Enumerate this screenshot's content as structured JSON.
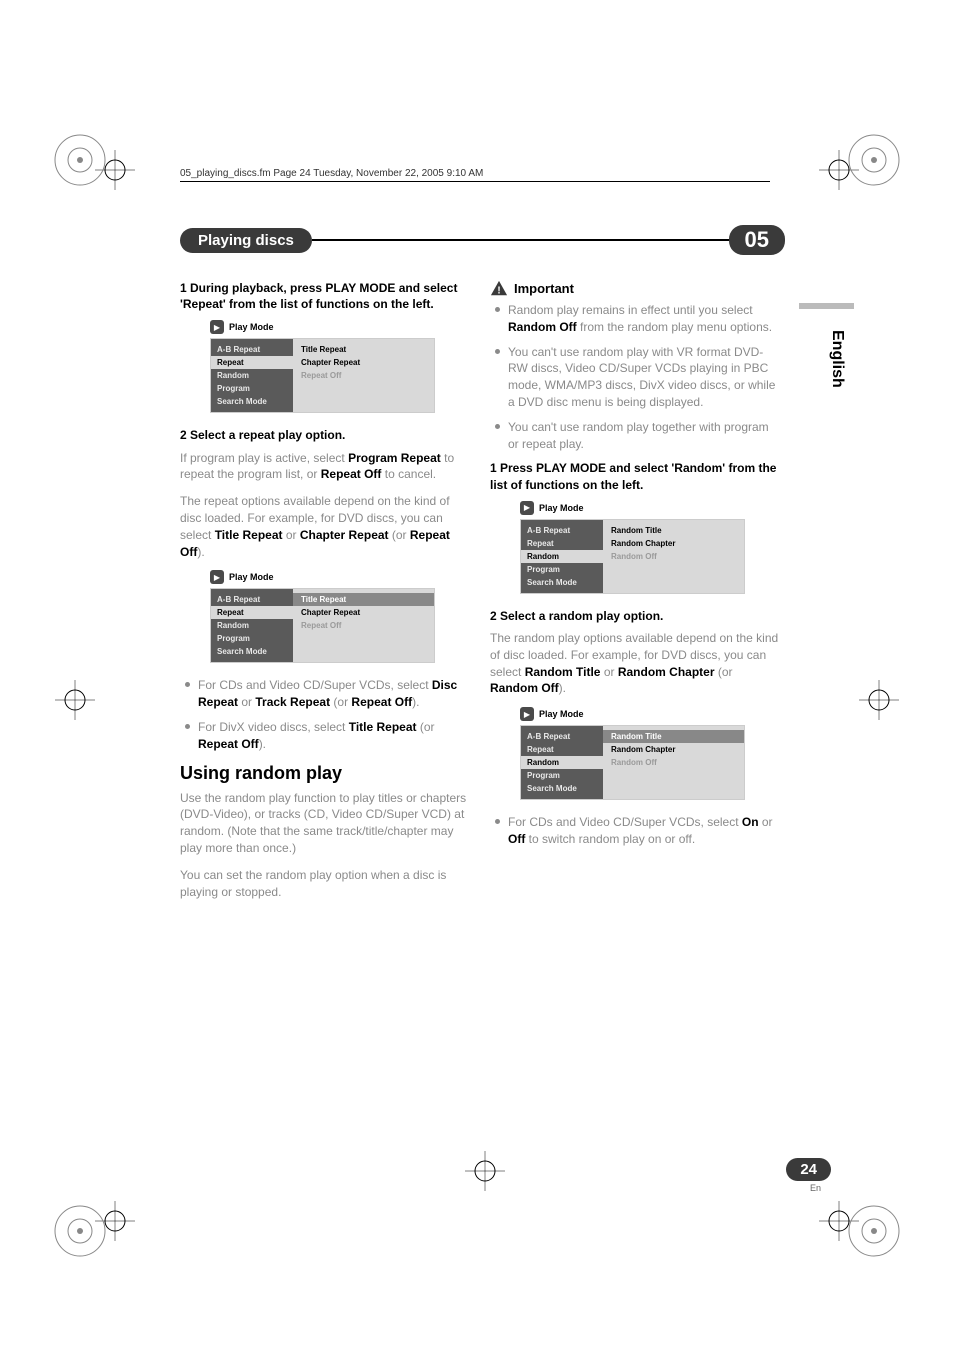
{
  "header_line": "05_playing_discs.fm  Page 24  Tuesday, November 22, 2005  9:10 AM",
  "chapter": {
    "title": "Playing discs",
    "number": "05"
  },
  "side_tab": "English",
  "page": {
    "number": "24",
    "lang": "En"
  },
  "left": {
    "step1": "1    During playback, press PLAY MODE and select 'Repeat' from the list of functions on the left.",
    "menu1": {
      "title": "Play Mode",
      "left_items": [
        "A-B Repeat",
        "Repeat",
        "Random",
        "Program",
        "Search Mode"
      ],
      "left_selected_idx": 1,
      "right_items": [
        "Title Repeat",
        "Chapter Repeat",
        "Repeat Off"
      ],
      "right_selected_idx": -1,
      "right_dim_idx": 2
    },
    "step2_head": "2    Select a repeat play option.",
    "step2_body_1a": "If program play is active, select ",
    "step2_body_1b": "Program Repeat",
    "step2_body_1c": " to repeat the program list, or ",
    "step2_body_1d": "Repeat Off",
    "step2_body_1e": " to cancel.",
    "step2_body_2a": "The repeat options available depend on the kind of disc loaded. For example, for DVD discs, you can select ",
    "step2_body_2b": "Title Repeat",
    "step2_body_2c": " or ",
    "step2_body_2d": "Chapter Repeat",
    "step2_body_2e": " (or ",
    "step2_body_2f": "Repeat Off",
    "step2_body_2g": ").",
    "menu2": {
      "title": "Play Mode",
      "left_items": [
        "A-B Repeat",
        "Repeat",
        "Random",
        "Program",
        "Search Mode"
      ],
      "left_selected_idx": 1,
      "right_items": [
        "Title Repeat",
        "Chapter Repeat",
        "Repeat Off"
      ],
      "right_selected_idx": 0,
      "right_dim_idx": 2
    },
    "bullet1_a": "For CDs and Video CD/Super VCDs, select ",
    "bullet1_b": "Disc Repeat",
    "bullet1_c": " or ",
    "bullet1_d": "Track Repeat",
    "bullet1_e": " (or ",
    "bullet1_f": "Repeat Off",
    "bullet1_g": ").",
    "bullet2_a": "For DivX video discs, select ",
    "bullet2_b": "Title Repeat",
    "bullet2_c": " (or ",
    "bullet2_d": "Repeat Off",
    "bullet2_e": ").",
    "section": "Using random play",
    "section_body1": "Use the random play function to play titles or chapters (DVD-Video), or tracks (CD, Video CD/Super VCD) at random. (Note that the same track/title/chapter may play more than once.)",
    "section_body2": "You can set the random play option when a disc is playing or stopped."
  },
  "right": {
    "important_label": "Important",
    "imp_b1_a": "Random play remains in effect until you select ",
    "imp_b1_b": "Random Off",
    "imp_b1_c": " from the random play menu options.",
    "imp_b2": "You can't use random play with VR format DVD-RW discs, Video CD/Super VCDs playing in PBC mode, WMA/MP3 discs, DivX video discs, or while a DVD disc menu is being displayed.",
    "imp_b3": "You can't use random play together with program or repeat play.",
    "step1": "1    Press PLAY MODE and select 'Random' from the list of functions on the left.",
    "menu1": {
      "title": "Play Mode",
      "left_items": [
        "A-B Repeat",
        "Repeat",
        "Random",
        "Program",
        "Search Mode"
      ],
      "left_selected_idx": 2,
      "right_items": [
        "Random Title",
        "Random Chapter",
        "Random Off"
      ],
      "right_selected_idx": -1,
      "right_dim_idx": 2
    },
    "step2_head": "2    Select a random play option.",
    "step2_body_a": "The random play options available depend on the kind of disc loaded. For example, for DVD discs, you can select ",
    "step2_body_b": "Random Title",
    "step2_body_c": " or ",
    "step2_body_d": "Random Chapter",
    "step2_body_e": " (or ",
    "step2_body_f": "Random Off",
    "step2_body_g": ").",
    "menu2": {
      "title": "Play Mode",
      "left_items": [
        "A-B Repeat",
        "Repeat",
        "Random",
        "Program",
        "Search Mode"
      ],
      "left_selected_idx": 2,
      "right_items": [
        "Random Title",
        "Random Chapter",
        "Random Off"
      ],
      "right_selected_idx": 0,
      "right_dim_idx": 2
    },
    "bullet_a": "For CDs and Video CD/Super VCDs, select ",
    "bullet_b": "On",
    "bullet_c": " or ",
    "bullet_d": "Off",
    "bullet_e": " to switch random play on or off."
  }
}
